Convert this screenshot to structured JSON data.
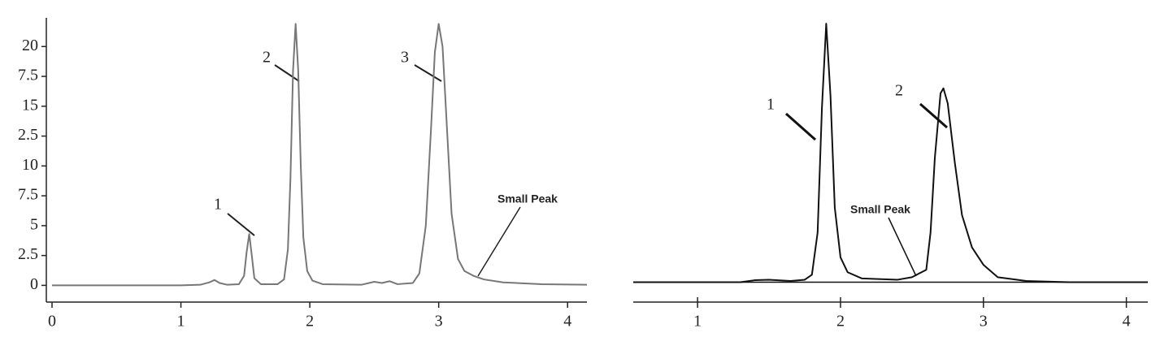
{
  "chart_data": [
    {
      "type": "line",
      "color": "#777777",
      "xlim": [
        0,
        4.15
      ],
      "ylim": [
        -1.4,
        22.4
      ],
      "xticks": [
        0,
        1,
        2,
        3,
        4
      ],
      "yticks": [
        0,
        2.5,
        5,
        7.5,
        10,
        {
          "value": 12.5,
          "label": "2.5"
        },
        15,
        {
          "value": 17.5,
          "label": "7.5"
        },
        20
      ],
      "x": [
        0,
        1.0,
        1.15,
        1.22,
        1.26,
        1.3,
        1.36,
        1.45,
        1.49,
        1.51,
        1.53,
        1.55,
        1.57,
        1.62,
        1.75,
        1.8,
        1.83,
        1.85,
        1.87,
        1.89,
        1.91,
        1.93,
        1.95,
        1.98,
        2.02,
        2.1,
        2.4,
        2.5,
        2.56,
        2.62,
        2.68,
        2.8,
        2.85,
        2.9,
        2.94,
        2.97,
        3.0,
        3.03,
        3.06,
        3.1,
        3.15,
        3.2,
        3.27,
        3.35,
        3.5,
        3.8,
        4.15
      ],
      "values": [
        0,
        0,
        0.05,
        0.25,
        0.45,
        0.2,
        0.05,
        0.1,
        0.8,
        2.8,
        4.3,
        2.5,
        0.6,
        0.1,
        0.1,
        0.5,
        3,
        9,
        18,
        21.9,
        18,
        10,
        4,
        1.2,
        0.4,
        0.1,
        0.05,
        0.3,
        0.2,
        0.35,
        0.1,
        0.2,
        1,
        5,
        13,
        19.5,
        21.9,
        20,
        14,
        6,
        2.2,
        1.2,
        0.8,
        0.5,
        0.25,
        0.1,
        0.05
      ],
      "annotations": [
        "1",
        "2",
        "3",
        "Small Peak"
      ]
    },
    {
      "type": "line",
      "color": "#111111",
      "xlim": [
        0.55,
        4.15
      ],
      "ylim": [
        -0.8,
        10.7
      ],
      "xticks": [
        1,
        2,
        3,
        4
      ],
      "x": [
        0.55,
        1.3,
        1.4,
        1.5,
        1.65,
        1.75,
        1.8,
        1.84,
        1.87,
        1.9,
        1.93,
        1.96,
        2.0,
        2.05,
        2.15,
        2.4,
        2.5,
        2.55,
        2.6,
        2.63,
        2.66,
        2.7,
        2.72,
        2.75,
        2.8,
        2.85,
        2.92,
        3.0,
        3.1,
        3.3,
        3.6,
        4.15
      ],
      "values": [
        0,
        0,
        0.08,
        0.1,
        0.05,
        0.1,
        0.3,
        2,
        7,
        10.4,
        7.5,
        3,
        1.0,
        0.4,
        0.15,
        0.1,
        0.2,
        0.35,
        0.5,
        2,
        5,
        7.6,
        7.8,
        7.2,
        4.8,
        2.7,
        1.4,
        0.7,
        0.2,
        0.05,
        0,
        0
      ],
      "annotations": [
        "1",
        "2",
        "Small Peak"
      ]
    }
  ]
}
